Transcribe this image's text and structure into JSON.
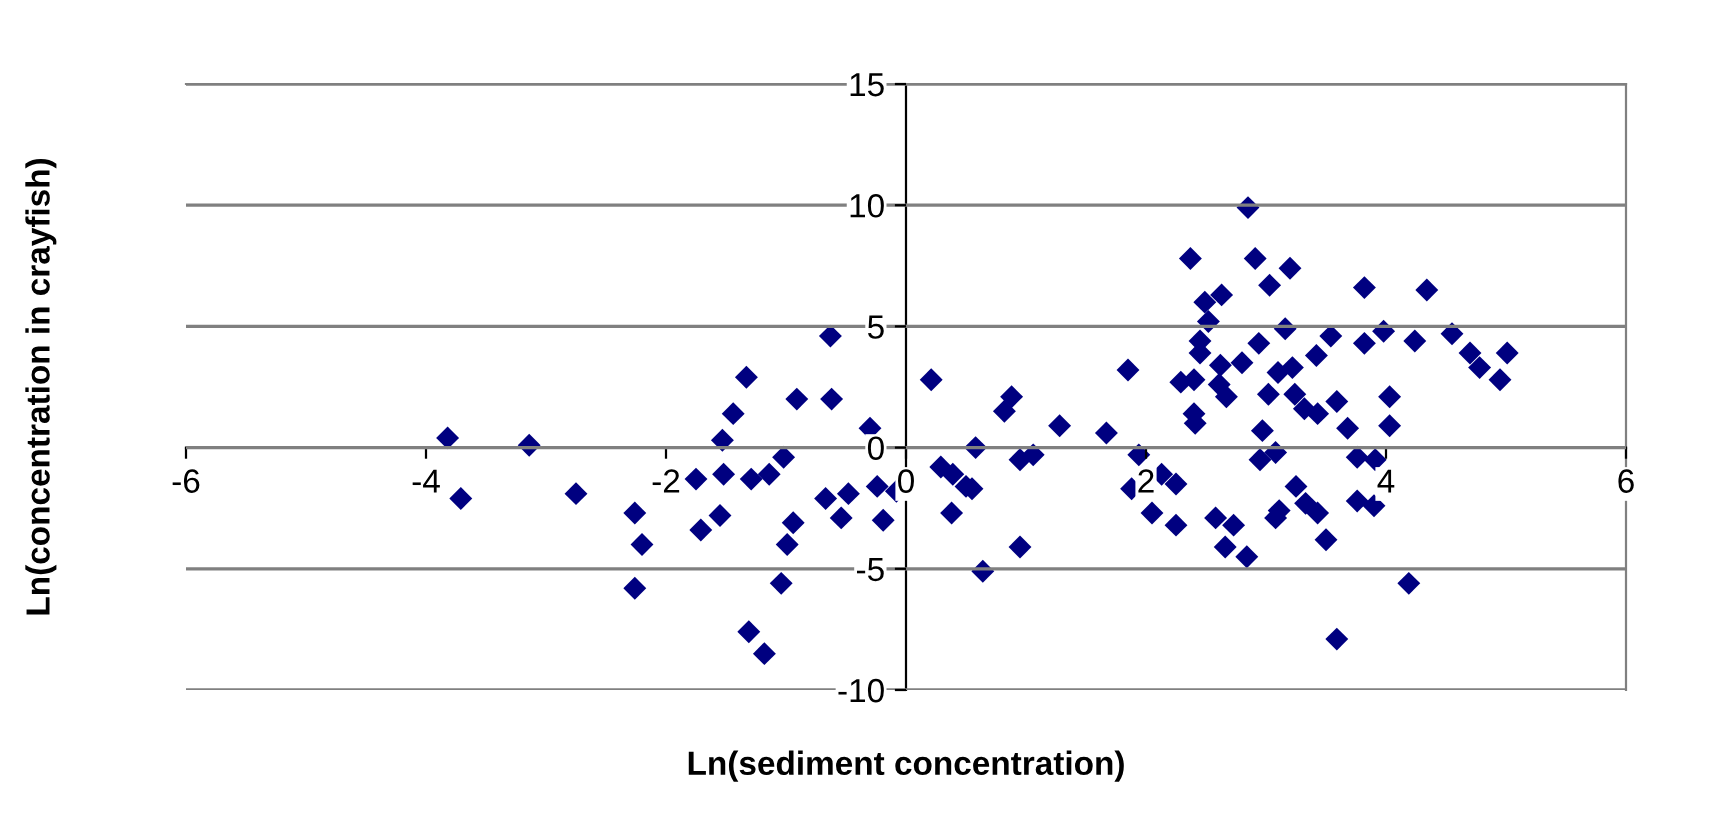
{
  "chart_data": {
    "type": "scatter",
    "xlabel": "Ln(sediment concentration)",
    "ylabel": "Ln(concentration in crayfish)",
    "xlim": [
      -6,
      6
    ],
    "xticks": [
      -6,
      -4,
      -2,
      0,
      2,
      4,
      6
    ],
    "ylim": [
      -10,
      15
    ],
    "yticks": [
      -10,
      -5,
      0,
      5,
      10,
      15
    ],
    "grid": "y",
    "marker": "diamond",
    "series": [
      {
        "color": "#000080",
        "x": [
          -3.82,
          -3.71,
          -3.14,
          -2.75,
          -2.26,
          -2.2,
          -2.26,
          -1.75,
          -1.71,
          -1.55,
          -1.53,
          -1.52,
          -1.44,
          -1.33,
          -1.29,
          -1.14,
          -1.02,
          -1.31,
          -1.18,
          -1.04,
          -0.99,
          -0.94,
          -0.91,
          -0.63,
          -0.62,
          -0.67,
          -0.48,
          -0.54,
          -0.3,
          -0.24,
          -0.08,
          -0.19,
          0.21,
          0.29,
          0.39,
          0.5,
          0.55,
          0.38,
          0.58,
          0.64,
          0.82,
          0.88,
          0.95,
          1.06,
          0.95,
          1.28,
          1.67,
          1.85,
          1.94,
          1.88,
          2.13,
          2.25,
          2.05,
          2.25,
          2.37,
          2.49,
          2.63,
          2.52,
          2.45,
          2.45,
          2.29,
          2.4,
          2.62,
          2.61,
          2.67,
          2.4,
          2.41,
          2.85,
          2.91,
          3.03,
          3.2,
          3.16,
          2.94,
          2.8,
          3.1,
          3.22,
          3.02,
          3.24,
          3.32,
          3.43,
          3.42,
          3.54,
          3.59,
          3.68,
          2.97,
          3.08,
          2.95,
          3.25,
          3.33,
          3.43,
          3.11,
          3.08,
          2.58,
          2.73,
          2.66,
          2.84,
          3.5,
          3.59,
          3.82,
          4.34,
          3.82,
          3.98,
          4.24,
          4.55,
          4.7,
          4.78,
          5.01,
          4.95,
          4.03,
          4.03,
          3.76,
          3.91,
          3.76,
          3.9,
          4.19
        ],
        "values": [
          0.4,
          -2.1,
          0.1,
          -1.9,
          -2.7,
          -4,
          -5.8,
          -1.3,
          -3.4,
          -2.8,
          0.3,
          -1.1,
          1.4,
          2.9,
          -1.3,
          -1.1,
          -0.4,
          -7.6,
          -8.5,
          -5.6,
          -4,
          -3.1,
          2,
          4.6,
          2,
          -2.1,
          -1.9,
          -2.9,
          0.8,
          -1.6,
          -1.8,
          -3,
          2.8,
          -0.8,
          -1.1,
          -1.6,
          -1.7,
          -2.7,
          0,
          -5.1,
          1.5,
          2.1,
          -0.5,
          -0.3,
          -4.1,
          0.9,
          0.6,
          3.2,
          -0.3,
          -1.7,
          -1.1,
          -1.5,
          -2.7,
          -3.2,
          7.8,
          6,
          6.3,
          5.2,
          4.4,
          3.9,
          2.7,
          2.8,
          3.4,
          2.6,
          2.1,
          1.4,
          1,
          9.9,
          7.8,
          6.7,
          7.4,
          4.9,
          4.3,
          3.5,
          3.1,
          3.3,
          2.2,
          2.2,
          1.6,
          1.4,
          3.8,
          4.6,
          1.9,
          0.8,
          0.7,
          -0.2,
          -0.5,
          -1.6,
          -2.3,
          -2.7,
          -2.6,
          -2.9,
          -2.9,
          -3.2,
          -4.1,
          -4.5,
          -3.8,
          -7.9,
          6.6,
          6.5,
          4.3,
          4.8,
          4.4,
          4.7,
          3.9,
          3.3,
          3.9,
          2.8,
          2.1,
          0.9,
          -0.4,
          -0.5,
          -2.2,
          -2.4,
          -5.6
        ]
      }
    ]
  }
}
